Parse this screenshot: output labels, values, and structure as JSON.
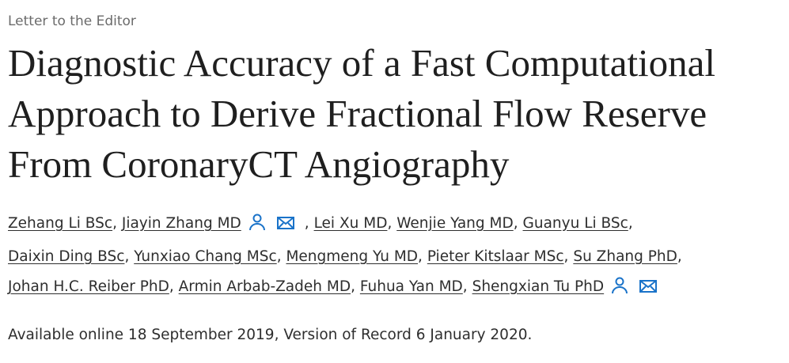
{
  "header": {
    "label": "Letter to the Editor"
  },
  "title_lines": [
    "Diagnostic Accuracy of a Fast Computational",
    "Approach to Derive Fractional Flow Reserve",
    "From CoronaryCT Angiography"
  ],
  "author_lines": [
    [
      {
        "name": "Zehang Li BSc",
        "punct": ","
      },
      {
        "name": "Jiayin Zhang MD",
        "contact": true,
        "punct": ","
      },
      {
        "name": "Lei Xu MD",
        "punct": ","
      },
      {
        "name": "Wenjie Yang MD",
        "punct": ","
      },
      {
        "name": "Guanyu Li BSc",
        "punct": ","
      }
    ],
    [
      {
        "name": "Daixin Ding BSc",
        "punct": ","
      },
      {
        "name": "Yunxiao Chang MSc",
        "punct": ","
      },
      {
        "name": "Mengmeng Yu MD",
        "punct": ","
      },
      {
        "name": "Pieter Kitslaar MSc",
        "punct": ","
      },
      {
        "name": "Su Zhang PhD",
        "punct": ","
      }
    ],
    [
      {
        "name": "Johan H.C. Reiber PhD",
        "punct": ","
      },
      {
        "name": "Armin Arbab-Zadeh MD",
        "punct": ","
      },
      {
        "name": "Fuhua Yan MD",
        "punct": ","
      },
      {
        "name": "Shengxian Tu PhD",
        "contact": true
      }
    ]
  ],
  "availability": "Available online 18 September 2019, Version of Record 6 January 2020."
}
